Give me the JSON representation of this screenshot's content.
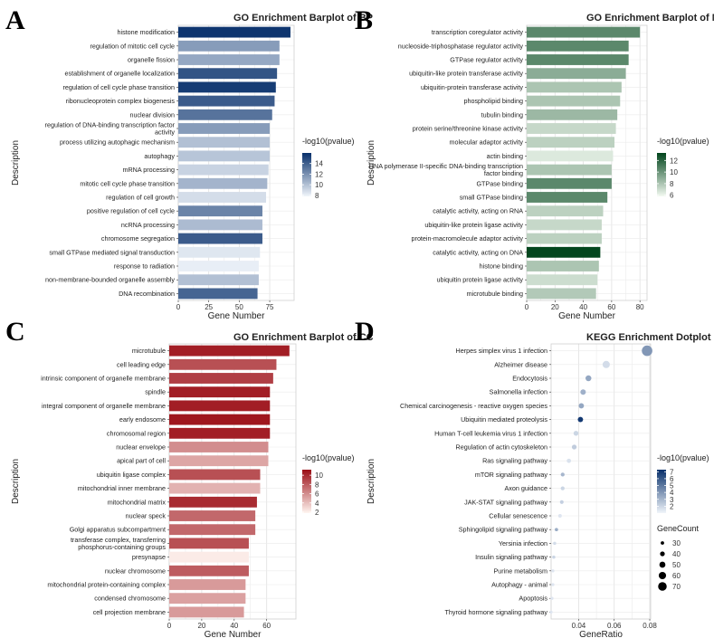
{
  "chart_data": [
    {
      "panel": "A",
      "type": "bar",
      "orientation": "horizontal",
      "title": "GO Enrichment Barplot of BP",
      "xlabel": "Gene Number",
      "ylabel": "Description",
      "xlim": [
        0,
        95
      ],
      "xticks": [
        0,
        25,
        50,
        75
      ],
      "categories": [
        "histone modification",
        "regulation of mitotic cell cycle",
        "organelle fission",
        "establishment of organelle localization",
        "regulation of cell cycle phase transition",
        "ribonucleoprotein complex biogenesis",
        "nuclear division",
        "regulation of DNA-binding transcription factor activity",
        "process utilizing autophagic mechanism",
        "autophagy",
        "mRNA processing",
        "mitotic cell cycle phase transition",
        "regulation of cell growth",
        "positive regulation of cell cycle",
        "ncRNA processing",
        "chromosome segregation",
        "small GTPase mediated signal transduction",
        "response to radiation",
        "non-membrane-bounded organelle assembly",
        "DNA recombination"
      ],
      "values": [
        92,
        83,
        83,
        81,
        80,
        79,
        77,
        75,
        75,
        75,
        74,
        73,
        72,
        69,
        69,
        69,
        67,
        66,
        66,
        65
      ],
      "color_values": [
        15.8,
        11.5,
        11.0,
        14.5,
        15.5,
        14.2,
        13.2,
        11.5,
        10.0,
        9.8,
        9.2,
        10.5,
        8.8,
        12.5,
        10.2,
        14.2,
        8.4,
        8.1,
        10.0,
        13.8
      ],
      "legend": {
        "title": "-log10(pvalue)",
        "ticks": [
          8,
          10,
          12,
          14
        ],
        "range": [
          7.8,
          16
        ],
        "low_color": "#f0f5fb",
        "high_color": "#08306b"
      }
    },
    {
      "panel": "B",
      "type": "bar",
      "orientation": "horizontal",
      "title": "GO Enrichment Barplot of MF",
      "xlabel": "Gene Number",
      "ylabel": "Description",
      "xlim": [
        0,
        85
      ],
      "xticks": [
        0,
        20,
        40,
        60,
        80
      ],
      "categories": [
        "transcription coregulator activity",
        "nucleoside-triphosphatase regulator activity",
        "GTPase regulator activity",
        "ubiquitin-like protein transferase activity",
        "ubiquitin-protein transferase activity",
        "phospholipid binding",
        "tubulin binding",
        "protein serine/threonine kinase activity",
        "molecular adaptor activity",
        "actin binding",
        "RNA polymerase II-specific DNA-binding transcription factor binding",
        "GTPase binding",
        "small GTPase binding",
        "catalytic activity, acting on RNA",
        "ubiquitin-like protein ligase activity",
        "protein-macromolecule adaptor activity",
        "catalytic activity, acting on DNA",
        "histone binding",
        "ubiquitin protein ligase activity",
        "microtubule binding"
      ],
      "values": [
        80,
        72,
        72,
        70,
        67,
        66,
        64,
        63,
        62,
        61,
        60,
        60,
        57,
        54,
        53,
        53,
        52,
        51,
        50,
        49
      ],
      "color_values": [
        10.5,
        10.5,
        10.5,
        9.0,
        8.0,
        8.0,
        8.5,
        7.2,
        7.5,
        6.5,
        8.0,
        10.5,
        10.5,
        7.5,
        7.2,
        7.5,
        13.2,
        8.0,
        7.0,
        7.8
      ],
      "legend": {
        "title": "-log10(pvalue)",
        "ticks": [
          6,
          8,
          10,
          12
        ],
        "range": [
          5.8,
          13.3
        ],
        "low_color": "#f3faf1",
        "high_color": "#00441b"
      }
    },
    {
      "panel": "C",
      "type": "bar",
      "orientation": "horizontal",
      "title": "GO Enrichment Barplot of CC",
      "xlabel": "Gene Number",
      "ylabel": "Description",
      "xlim": [
        0,
        78
      ],
      "xticks": [
        0,
        20,
        40,
        60
      ],
      "categories": [
        "microtubule",
        "cell leading edge",
        "intrinsic component of organelle membrane",
        "spindle",
        "integral component of organelle membrane",
        "early endosome",
        "chromosomal region",
        "nuclear envelope",
        "apical part of cell",
        "ubiquitin ligase complex",
        "mitochondrial inner membrane",
        "mitochondrial matrix",
        "nuclear speck",
        "Golgi apparatus subcompartment",
        "transferase complex, transferring phosphorus-containing groups",
        "presynapse",
        "nuclear chromosome",
        "mitochondrial protein-containing complex",
        "condensed chromosome",
        "cell projection membrane"
      ],
      "values": [
        74,
        66,
        64,
        62,
        62,
        62,
        62,
        61,
        61,
        56,
        56,
        54,
        53,
        53,
        49,
        49,
        49,
        47,
        47,
        46
      ],
      "color_values": [
        10.5,
        8.5,
        9.2,
        10.5,
        10.5,
        10.8,
        10.5,
        6.0,
        5.0,
        8.5,
        4.5,
        10.0,
        7.5,
        7.5,
        8.5,
        2.2,
        8.0,
        5.5,
        5.2,
        5.5
      ],
      "legend": {
        "title": "-log10(pvalue)",
        "ticks": [
          2,
          4,
          6,
          8,
          10
        ],
        "range": [
          1.8,
          11.2
        ],
        "low_color": "#fff5f0",
        "high_color": "#9b0d15"
      }
    },
    {
      "panel": "D",
      "type": "scatter",
      "title": "KEGG Enrichment Dotplot",
      "xlabel": "GeneRatio",
      "ylabel": "Description",
      "xlim": [
        0.0245,
        0.0805
      ],
      "xticks": [
        0.04,
        0.06,
        0.08
      ],
      "xtick_labels": [
        "0.04",
        "0.06",
        "0.08"
      ],
      "categories": [
        "Herpes simplex virus 1 infection",
        "Alzheimer disease",
        "Endocytosis",
        "Salmonella infection",
        "Chemical carcinogenesis - reactive oxygen species",
        "Ubiquitin mediated proteolysis",
        "Human T-cell leukemia virus 1 infection",
        "Regulation of actin cytoskeleton",
        "Ras signaling pathway",
        "mTOR signaling pathway",
        "Axon guidance",
        "JAK-STAT signaling pathway",
        "Cellular senescence",
        "Sphingolipid signaling pathway",
        "Yersinia infection",
        "Insulin signaling pathway",
        "Purine metabolism",
        "Autophagy - animal",
        "Apoptosis",
        "Thyroid hormone signaling pathway"
      ],
      "gene_ratio": [
        0.0785,
        0.0555,
        0.0455,
        0.0425,
        0.0415,
        0.041,
        0.0385,
        0.0375,
        0.0345,
        0.031,
        0.031,
        0.0305,
        0.0295,
        0.0275,
        0.0265,
        0.026,
        0.0255,
        0.0255,
        0.025,
        0.0245
      ],
      "gene_count": [
        78,
        55,
        45,
        42,
        41,
        41,
        38,
        37,
        34,
        31,
        31,
        30,
        29,
        27,
        26,
        26,
        25,
        25,
        25,
        24
      ],
      "color_values": [
        4.0,
        1.8,
        3.5,
        3.2,
        3.5,
        7.0,
        2.0,
        2.3,
        1.6,
        3.0,
        2.0,
        2.2,
        1.5,
        3.3,
        1.8,
        2.0,
        1.5,
        1.5,
        1.5,
        1.5
      ],
      "legend": {
        "title": "-log10(pvalue)",
        "ticks": [
          2,
          3,
          4,
          5,
          6,
          7
        ],
        "range": [
          1.0,
          7.3
        ],
        "low_color": "#f0f5fb",
        "high_color": "#08306b"
      },
      "size_legend": {
        "title": "GeneCount",
        "values": [
          30,
          40,
          50,
          60,
          70
        ]
      }
    }
  ]
}
